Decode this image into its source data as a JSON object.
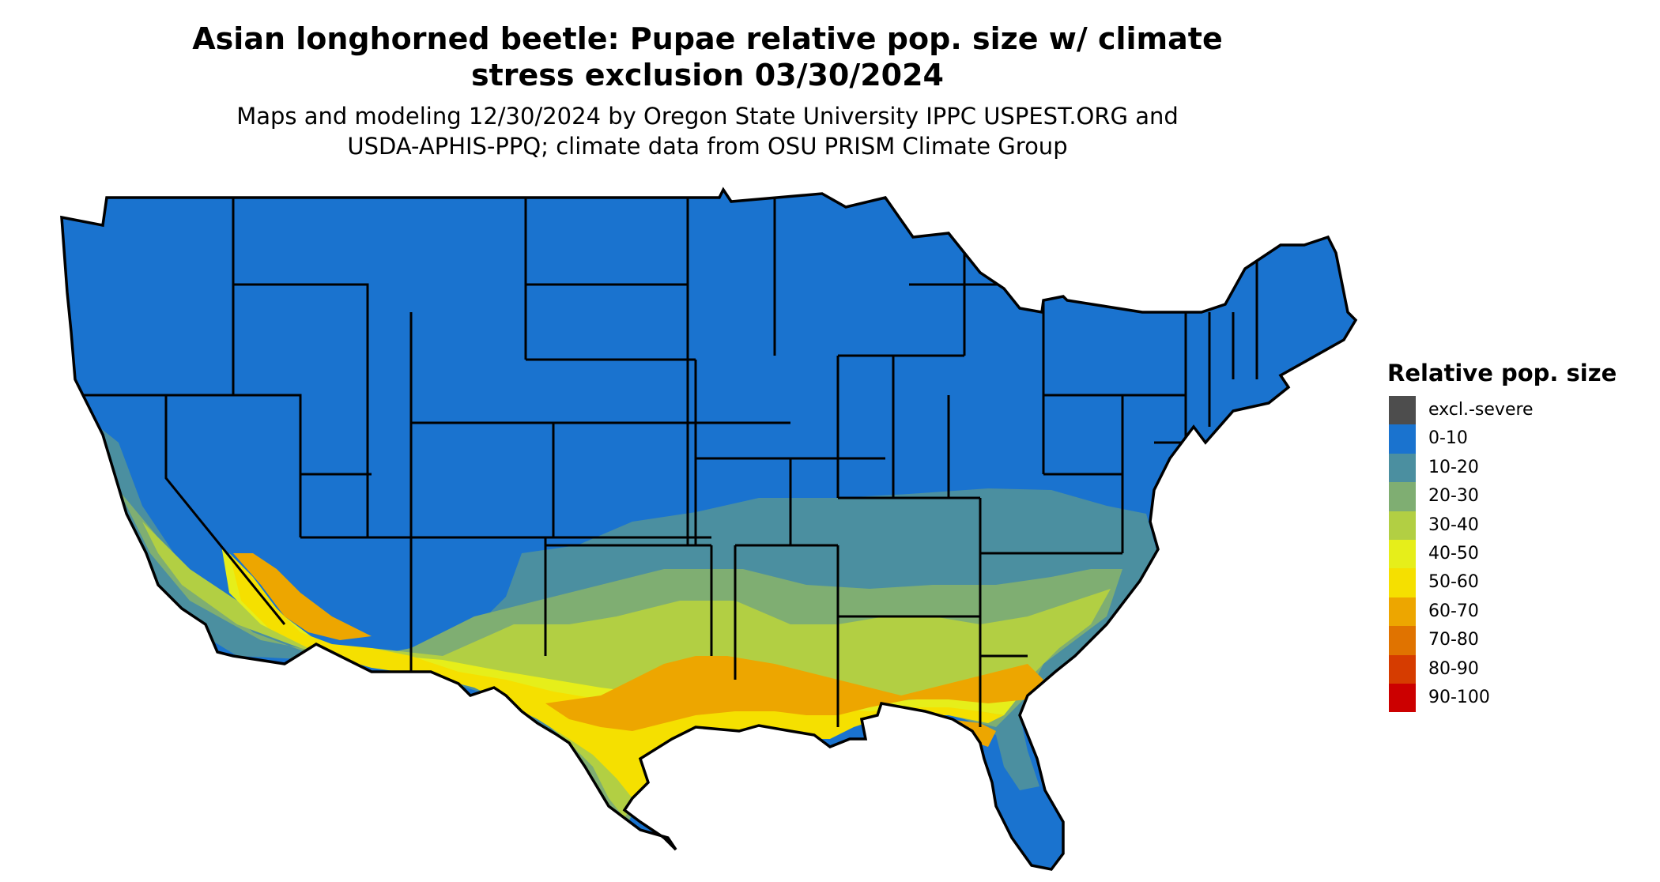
{
  "title": [
    "Asian longhorned beetle: Pupae relative pop. size w/ climate",
    "stress exclusion 03/30/2024"
  ],
  "subtitle": [
    "Maps and modeling 12/30/2024 by Oregon State University IPPC USPEST.ORG and",
    "USDA-APHIS-PPQ; climate data from OSU PRISM Climate Group"
  ],
  "legend": {
    "title": "Relative pop. size",
    "items": [
      {
        "label": "excl.-severe",
        "color": "#4d4d4d"
      },
      {
        "label": "0-10",
        "color": "#1a73cf"
      },
      {
        "label": "10-20",
        "color": "#4b8fa0"
      },
      {
        "label": "20-30",
        "color": "#7fae72"
      },
      {
        "label": "30-40",
        "color": "#b2cf43"
      },
      {
        "label": "40-50",
        "color": "#e6ee1a"
      },
      {
        "label": "50-60",
        "color": "#f5e000"
      },
      {
        "label": "60-70",
        "color": "#eda600"
      },
      {
        "label": "70-80",
        "color": "#e07300"
      },
      {
        "label": "80-90",
        "color": "#d63c00"
      },
      {
        "label": "90-100",
        "color": "#cc0000"
      }
    ]
  },
  "map": {
    "region": "contiguous-united-states",
    "background_color": "#1a73cf",
    "border_color": "#000000"
  }
}
